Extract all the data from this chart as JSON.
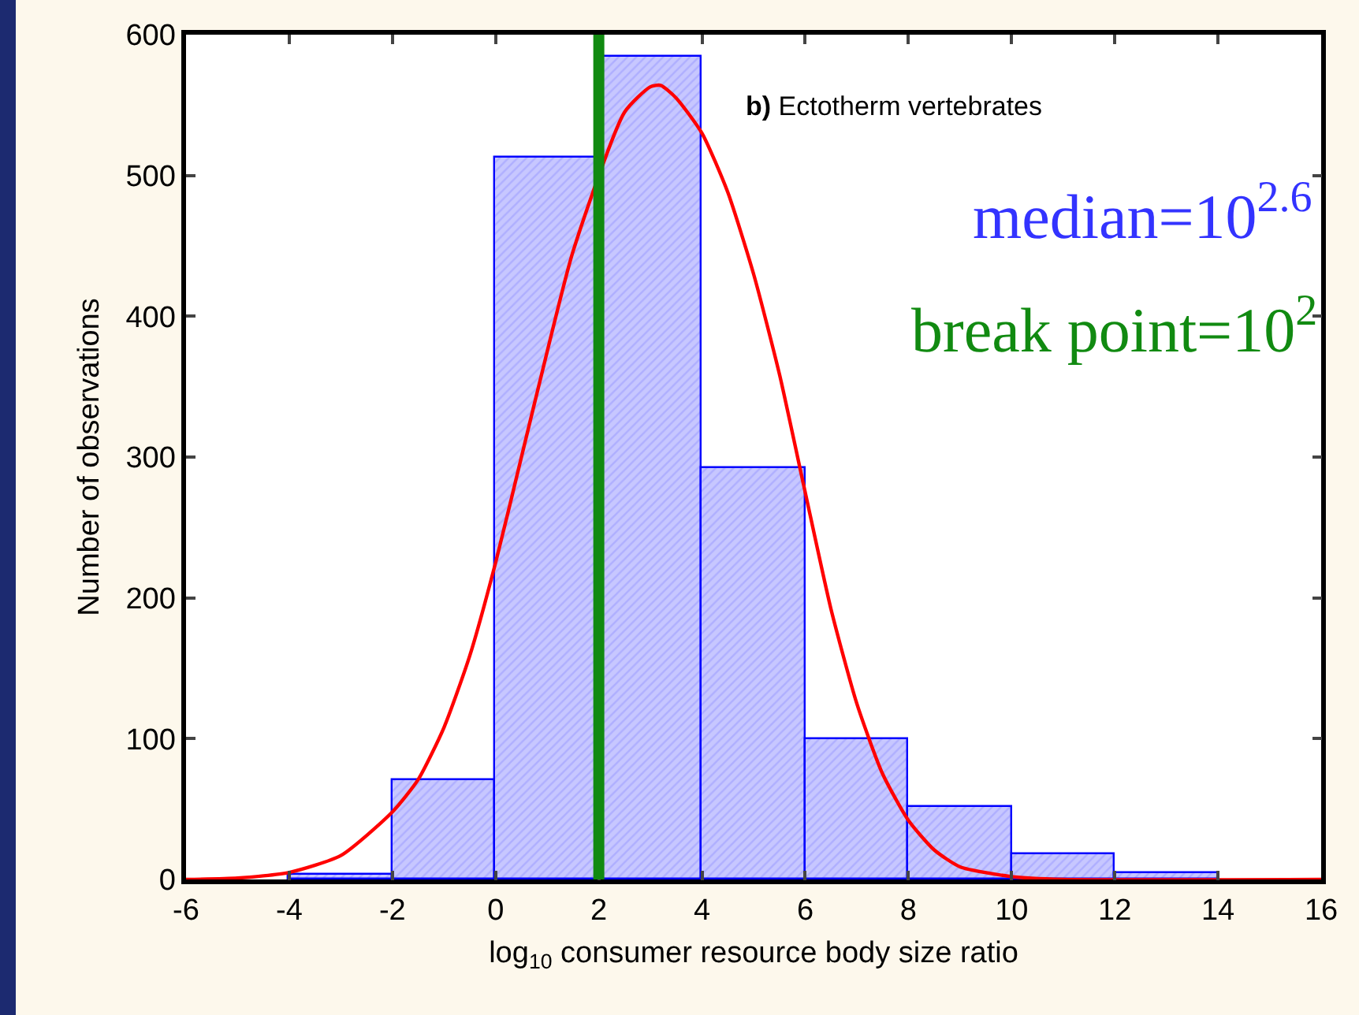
{
  "chart_data": {
    "type": "histogram",
    "xlabel": "log$_{10}$ consumer resource body size ratio",
    "ylabel": "Number of observations",
    "bins": [
      -4,
      -2,
      0,
      2,
      4,
      6,
      8,
      10,
      12,
      14
    ],
    "series": [
      {
        "color": "#0000ff",
        "values": [
          3,
          70,
          513,
          584,
          292,
          100,
          51,
          18,
          5
        ]
      },
      {
        "type": "line",
        "color": "#ff0000",
        "x": [
          -6,
          -5,
          -4,
          -3,
          -2,
          -1.5,
          -1,
          -0.5,
          0,
          0.5,
          1,
          1.5,
          2,
          2.5,
          3,
          3.2,
          3.5,
          4,
          4.5,
          5,
          5.5,
          6,
          6.5,
          7,
          7.5,
          8,
          8.5,
          9,
          10,
          11,
          16
        ],
        "values": [
          0,
          1,
          5,
          17,
          48,
          71,
          108,
          159,
          225,
          300,
          375,
          446,
          null,
          545,
          563,
          564,
          555,
          530,
          488,
          430,
          359,
          275,
          192,
          125,
          75,
          42,
          21,
          9,
          2,
          0,
          0
        ]
      }
    ],
    "xlim": [
      -6,
      16
    ],
    "xticks": [
      -6,
      -4,
      -2,
      0,
      2,
      4,
      6,
      8,
      10,
      12,
      14,
      16
    ],
    "ylim": [
      0,
      600
    ],
    "yticks": [
      0,
      100,
      200,
      300,
      400,
      500,
      600
    ],
    "ref_lines": [
      {
        "axis": "x",
        "value": 2,
        "label": "break point=10$^{2}$",
        "color": "#118a11"
      }
    ],
    "annotations": [
      "b) Ectotherm vertebrates",
      "median=10$^{2.6}$"
    ],
    "grid": false,
    "legend": false,
    "marker": "none",
    "line_style": "solid"
  }
}
